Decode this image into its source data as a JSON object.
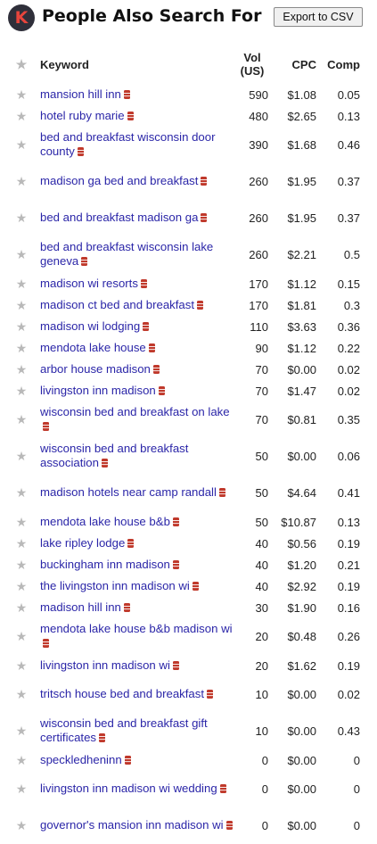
{
  "header": {
    "logo_letter": "K",
    "title": "People Also Search For",
    "export_label": "Export to CSV"
  },
  "columns": {
    "keyword": "Keyword",
    "vol_line1": "Vol",
    "vol_line2": "(US)",
    "cpc": "CPC",
    "comp": "Comp"
  },
  "icons": {
    "star": "star-icon",
    "database": "database-icon",
    "accent_color": "#c0392b"
  },
  "rows": [
    {
      "keyword": "mansion hill inn",
      "vol": "590",
      "cpc": "$1.08",
      "comp": "0.05",
      "lines": 1
    },
    {
      "keyword": "hotel ruby marie",
      "vol": "480",
      "cpc": "$2.65",
      "comp": "0.13",
      "lines": 1
    },
    {
      "keyword": "bed and breakfast wisconsin door county",
      "vol": "390",
      "cpc": "$1.68",
      "comp": "0.46",
      "lines": 2
    },
    {
      "keyword": "madison ga bed and breakfast",
      "vol": "260",
      "cpc": "$1.95",
      "comp": "0.37",
      "lines": 2
    },
    {
      "keyword": "bed and breakfast madison ga",
      "vol": "260",
      "cpc": "$1.95",
      "comp": "0.37",
      "lines": 2
    },
    {
      "keyword": "bed and breakfast wisconsin lake geneva",
      "vol": "260",
      "cpc": "$2.21",
      "comp": "0.5",
      "lines": 2
    },
    {
      "keyword": "madison wi resorts",
      "vol": "170",
      "cpc": "$1.12",
      "comp": "0.15",
      "lines": 1
    },
    {
      "keyword": "madison ct bed and breakfast",
      "vol": "170",
      "cpc": "$1.81",
      "comp": "0.3",
      "lines": 1
    },
    {
      "keyword": "madison wi lodging",
      "vol": "110",
      "cpc": "$3.63",
      "comp": "0.36",
      "lines": 1
    },
    {
      "keyword": "mendota lake house",
      "vol": "90",
      "cpc": "$1.12",
      "comp": "0.22",
      "lines": 1
    },
    {
      "keyword": "arbor house madison",
      "vol": "70",
      "cpc": "$0.00",
      "comp": "0.02",
      "lines": 1
    },
    {
      "keyword": "livingston inn madison",
      "vol": "70",
      "cpc": "$1.47",
      "comp": "0.02",
      "lines": 1
    },
    {
      "keyword": "wisconsin bed and breakfast on lake",
      "vol": "70",
      "cpc": "$0.81",
      "comp": "0.35",
      "lines": 2
    },
    {
      "keyword": "wisconsin bed and breakfast association",
      "vol": "50",
      "cpc": "$0.00",
      "comp": "0.06",
      "lines": 2
    },
    {
      "keyword": "madison hotels near camp randall",
      "vol": "50",
      "cpc": "$4.64",
      "comp": "0.41",
      "lines": 2
    },
    {
      "keyword": "mendota lake house b&b",
      "vol": "50",
      "cpc": "$10.87",
      "comp": "0.13",
      "lines": 1
    },
    {
      "keyword": "lake ripley lodge",
      "vol": "40",
      "cpc": "$0.56",
      "comp": "0.19",
      "lines": 1
    },
    {
      "keyword": "buckingham inn madison",
      "vol": "40",
      "cpc": "$1.20",
      "comp": "0.21",
      "lines": 1
    },
    {
      "keyword": "the livingston inn madison wi",
      "vol": "40",
      "cpc": "$2.92",
      "comp": "0.19",
      "lines": 1
    },
    {
      "keyword": "madison hill inn",
      "vol": "30",
      "cpc": "$1.90",
      "comp": "0.16",
      "lines": 1
    },
    {
      "keyword": "mendota lake house b&b madison wi",
      "vol": "20",
      "cpc": "$0.48",
      "comp": "0.26",
      "lines": 2
    },
    {
      "keyword": "livingston inn madison wi",
      "vol": "20",
      "cpc": "$1.62",
      "comp": "0.19",
      "lines": 1
    },
    {
      "keyword": "tritsch house bed and breakfast",
      "vol": "10",
      "cpc": "$0.00",
      "comp": "0.02",
      "lines": 2
    },
    {
      "keyword": "wisconsin bed and breakfast gift certificates",
      "vol": "10",
      "cpc": "$0.00",
      "comp": "0.43",
      "lines": 2
    },
    {
      "keyword": "speckledheninn",
      "vol": "0",
      "cpc": "$0.00",
      "comp": "0",
      "lines": 1
    },
    {
      "keyword": "livingston inn madison wi wedding",
      "vol": "0",
      "cpc": "$0.00",
      "comp": "0",
      "lines": 2
    },
    {
      "keyword": "governor's mansion inn madison wi",
      "vol": "0",
      "cpc": "$0.00",
      "comp": "0",
      "lines": 2
    }
  ]
}
